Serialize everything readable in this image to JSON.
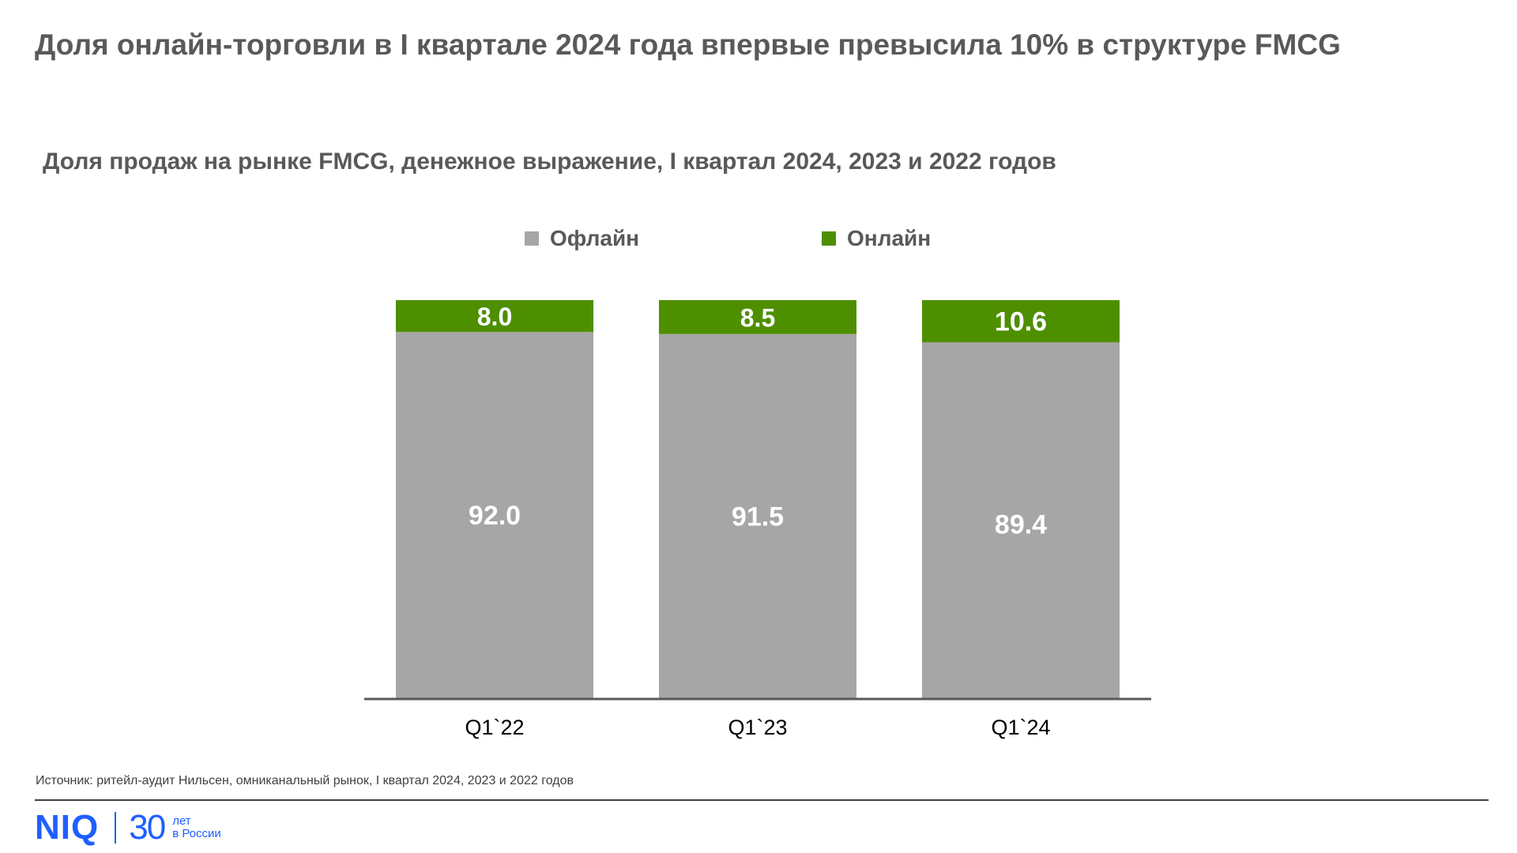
{
  "title": "Доля онлайн-торговли в I квартале 2024 года впервые превысила 10% в структуре FMCG",
  "chart_data": {
    "type": "bar",
    "stacked": true,
    "title": "Доля продаж на рынке FMCG, денежное выражение, I квартал 2024, 2023 и 2022 годов",
    "categories": [
      "Q1`22",
      "Q1`23",
      "Q1`24"
    ],
    "series": [
      {
        "name": "Офлайн",
        "values": [
          92.0,
          91.5,
          89.4
        ],
        "color": "#a6a6a6"
      },
      {
        "name": "Онлайн",
        "values": [
          8.0,
          8.5,
          10.6
        ],
        "color": "#4e8f00"
      }
    ],
    "ylim": [
      0,
      100
    ],
    "xlabel": "",
    "ylabel": "",
    "grid": false,
    "legend_position": "top"
  },
  "source": "Источник: ритейл-аудит Нильсен, омниканальный рынок, I квартал 2024, 2023 и 2022 годов",
  "brand": {
    "logo_text": "NIQ",
    "years": "30",
    "caption_line1": "лет",
    "caption_line2": "в России"
  }
}
